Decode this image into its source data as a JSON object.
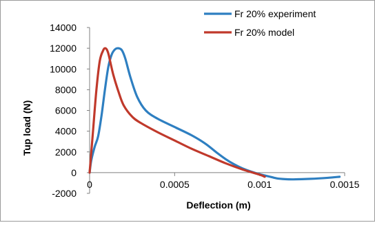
{
  "chart_data": {
    "type": "line",
    "title": "",
    "xlabel": "Deflection (m)",
    "ylabel": "Tup load (N)",
    "xlim": [
      0,
      0.0015
    ],
    "ylim": [
      -2000,
      14000
    ],
    "x_ticks": [
      0,
      0.0005,
      0.001,
      0.0015
    ],
    "x_tick_labels": [
      "0",
      "0.0005",
      "0.001",
      "0.0015"
    ],
    "y_ticks": [
      -2000,
      0,
      2000,
      4000,
      6000,
      8000,
      10000,
      12000,
      14000
    ],
    "y_tick_labels": [
      "-2000",
      "0",
      "2000",
      "4000",
      "6000",
      "8000",
      "10000",
      "12000",
      "14000"
    ],
    "grid": false,
    "legend_position": "top-right",
    "series": [
      {
        "name": "Fr 20% experiment",
        "color": "#2e7fc1",
        "x": [
          0,
          1e-05,
          3e-05,
          5e-05,
          7e-05,
          9e-05,
          0.00011,
          0.00013,
          0.00015,
          0.00017,
          0.00019,
          0.00021,
          0.00024,
          0.00028,
          0.00033,
          0.0004,
          0.0005,
          0.0006,
          0.00068,
          0.00075,
          0.0008,
          0.00085,
          0.0009,
          0.00095,
          0.001,
          0.00105,
          0.0011,
          0.00115,
          0.0012,
          0.0013,
          0.0014,
          0.00147
        ],
        "y": [
          0,
          1200,
          2500,
          3500,
          5500,
          8000,
          10200,
          11400,
          11900,
          12000,
          11800,
          11000,
          9200,
          7300,
          6000,
          5200,
          4400,
          3600,
          2800,
          1900,
          1300,
          800,
          400,
          100,
          -150,
          -350,
          -550,
          -630,
          -650,
          -600,
          -500,
          -400
        ]
      },
      {
        "name": "Fr 20% model",
        "color": "#c0392b",
        "x": [
          0,
          1e-05,
          2e-05,
          4e-05,
          6e-05,
          8e-05,
          9e-05,
          0.0001,
          0.00011,
          0.00012,
          0.00014,
          0.00017,
          0.0002,
          0.00025,
          0.0003,
          0.0004,
          0.0005,
          0.0006,
          0.0007,
          0.0008,
          0.0009,
          0.001,
          0.00103
        ],
        "y": [
          0,
          2000,
          4000,
          8000,
          10800,
          11800,
          12000,
          11900,
          11500,
          10800,
          9400,
          7800,
          6500,
          5400,
          4800,
          3900,
          3100,
          2300,
          1600,
          900,
          300,
          -200,
          -400
        ]
      }
    ]
  }
}
